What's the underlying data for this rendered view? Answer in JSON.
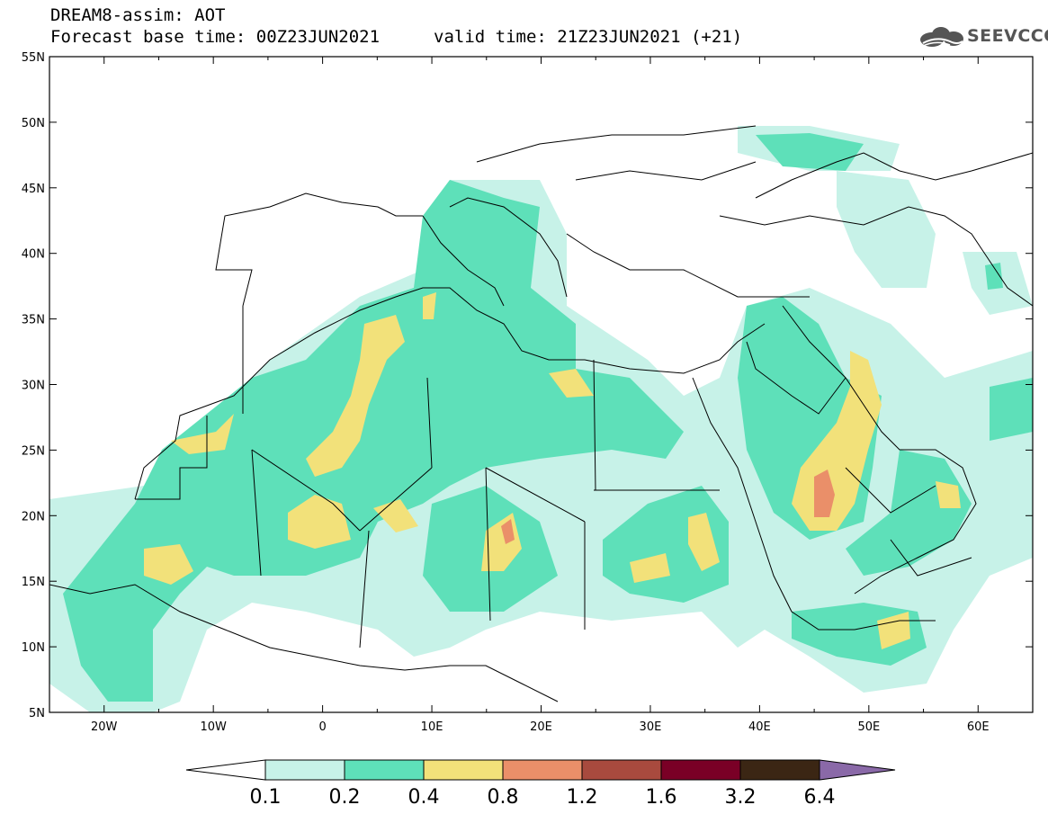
{
  "header": {
    "line1": "DREAM8-assim: AOT",
    "base_time": "Forecast base time: 00Z23JUN2021",
    "valid_time": "valid time: 21Z23JUN2021 (+21)"
  },
  "logo": {
    "text": "SEEVCCC",
    "icon": "cloud-logo-icon",
    "color": "#555555"
  },
  "map": {
    "lon_range": [
      -25,
      65
    ],
    "lat_range": [
      5,
      55
    ],
    "lon_labels": [
      "20W",
      "10W",
      "0",
      "10E",
      "20E",
      "30E",
      "40E",
      "50E",
      "60E"
    ],
    "lon_values": [
      -20,
      -10,
      0,
      10,
      20,
      30,
      40,
      50,
      60
    ],
    "lat_labels": [
      "5N",
      "10N",
      "15N",
      "20N",
      "25N",
      "30N",
      "35N",
      "40N",
      "45N",
      "50N",
      "55N"
    ],
    "lat_values": [
      5,
      10,
      15,
      20,
      25,
      30,
      35,
      40,
      45,
      50,
      55
    ]
  },
  "colorbar": {
    "labels": [
      "0.1",
      "0.2",
      "0.4",
      "0.8",
      "1.2",
      "1.6",
      "3.2",
      "6.4"
    ],
    "colors": [
      "#ffffff",
      "#c7f2e8",
      "#5ee0b9",
      "#f2e17a",
      "#ea8f69",
      "#a84a3e",
      "#7a0026",
      "#3b2614",
      "#8a69a8"
    ]
  }
}
